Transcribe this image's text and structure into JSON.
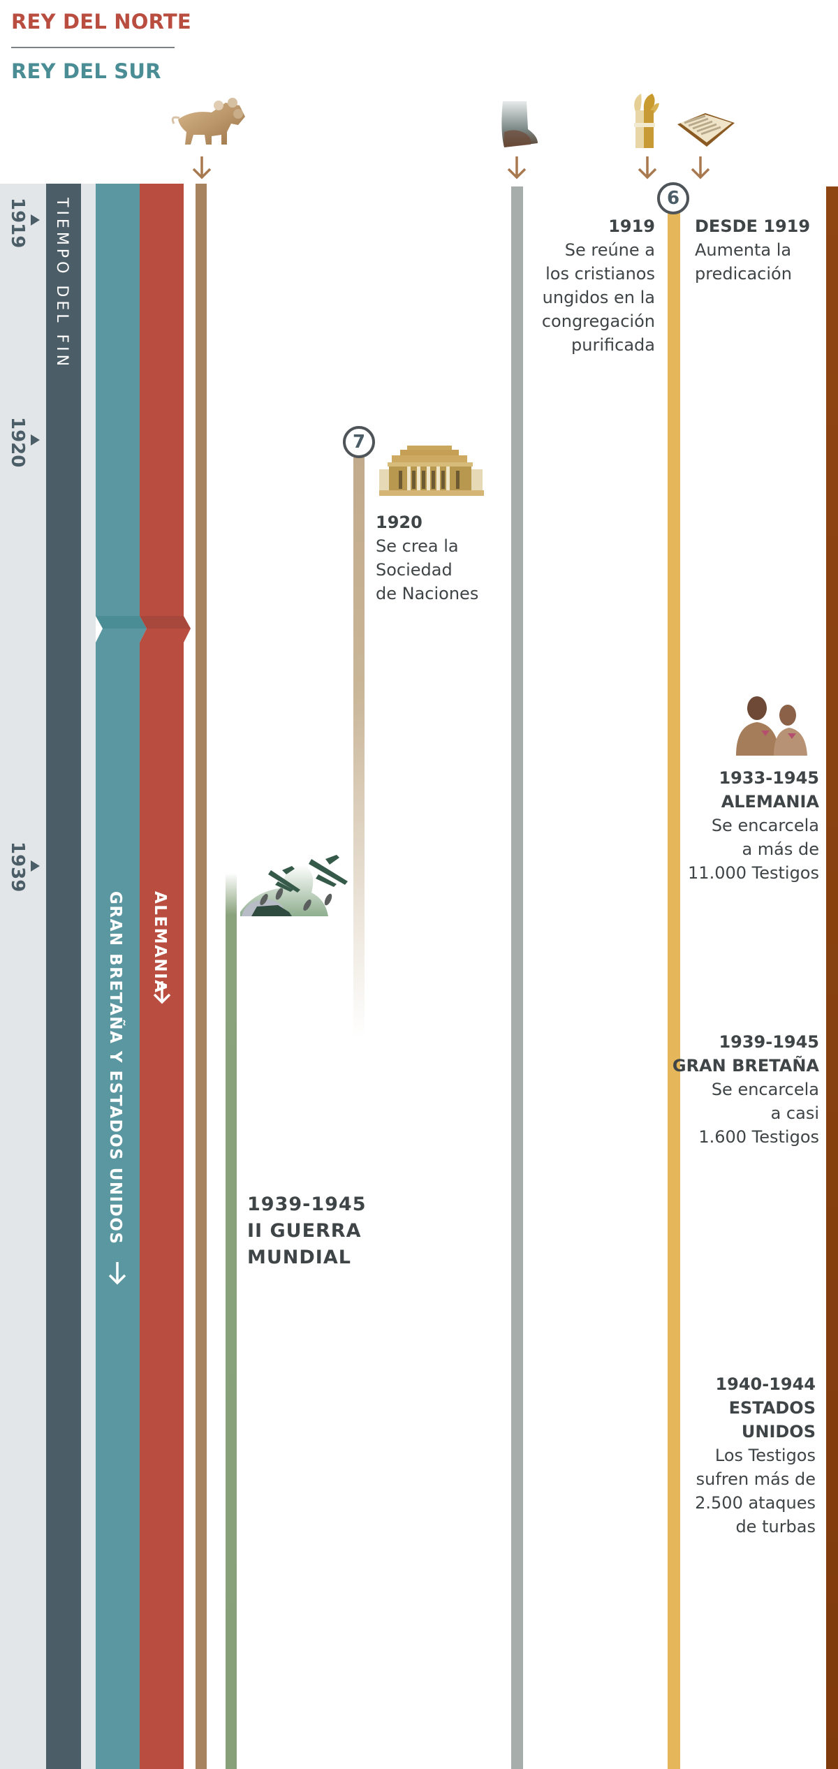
{
  "legend": {
    "north": "REY DEL NORTE",
    "south": "REY DEL SUR",
    "north_color": "#b84d40",
    "south_color": "#4a8d94"
  },
  "axis": {
    "label": "TIEMPO DEL FIN",
    "years": [
      "1919",
      "1920",
      "1939"
    ]
  },
  "bands": {
    "south_label": "GRAN BRETAÑA Y ESTADOS UNIDOS",
    "north_label": "ALEMANIA",
    "arrow_icon": "arrow-down-icon",
    "colors": {
      "axis": "#4b5d66",
      "south": "#5b97a0",
      "north": "#b84d40",
      "track": "#e3e6e8"
    }
  },
  "icons": [
    "leopard-beast-icon",
    "statue-feet-icon",
    "wheat-sheaf-icon",
    "open-bible-icon",
    "league-building-icon",
    "bomber-planes-icon",
    "prisoners-icon"
  ],
  "markers": {
    "six": "6",
    "seven": "7"
  },
  "events": {
    "gathering": {
      "date": "1919",
      "lines": [
        "Se reúne a",
        "los cristianos",
        "ungidos en la",
        "congregación",
        "purificada"
      ]
    },
    "preaching": {
      "date": "DESDE 1919",
      "lines": [
        "Aumenta la",
        "predicación"
      ]
    },
    "league": {
      "date": "1920",
      "lines": [
        "Se crea la",
        "Sociedad",
        "de Naciones"
      ]
    },
    "war": {
      "lines": [
        "1939-1945",
        "II GUERRA",
        "MUNDIAL"
      ]
    },
    "germany": {
      "date": "1933-1945",
      "title": "ALEMANIA",
      "lines": [
        "Se encarcela",
        "a más de",
        "11.000 Testigos"
      ]
    },
    "britain": {
      "date": "1939-1945",
      "title": "GRAN BRETAÑA",
      "lines": [
        "Se encarcela",
        "a casi",
        "1.600 Testigos"
      ]
    },
    "usa": {
      "date": "1940-1944",
      "title": [
        "ESTADOS",
        "UNIDOS"
      ],
      "lines": [
        "Los Testigos",
        "sufren más de",
        "2.500 ataques",
        "de turbas"
      ]
    }
  }
}
